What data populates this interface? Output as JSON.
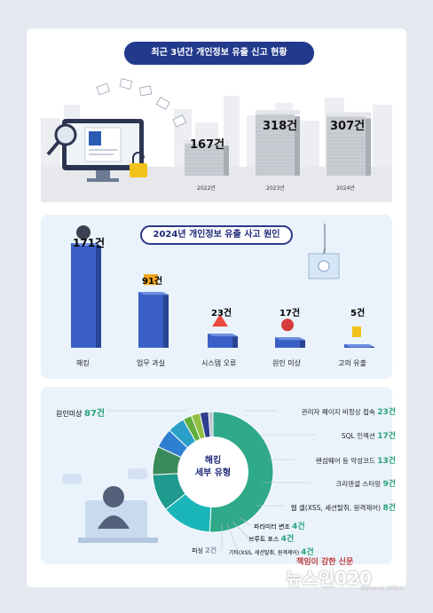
{
  "chart_data": [
    {
      "type": "bar",
      "title": "최근 3년간 개인정보 유출 신고 현황",
      "categories": [
        "2022년",
        "2023년",
        "2024년"
      ],
      "values": [
        167,
        318,
        307
      ],
      "value_labels": [
        "167건",
        "318건",
        "307건"
      ]
    },
    {
      "type": "bar",
      "title": "2024년 개인정보 유출 사고 원인",
      "categories": [
        "해킹",
        "업무 과실",
        "시스템 오류",
        "원인 미상",
        "고의 유출"
      ],
      "values": [
        171,
        91,
        23,
        17,
        5
      ],
      "value_labels": [
        "171건",
        "91건",
        "23건",
        "17건",
        "5건"
      ],
      "bar_colors": [
        "#3a5fc6",
        "#3a5fc6",
        "#3a5fc6",
        "#3a5fc6",
        "#3a5fc6"
      ]
    },
    {
      "type": "pie",
      "title": "해킹 세부 유형",
      "labels": [
        "원인미상",
        "관리자 페이지 비정상 접속",
        "SQL 인젝션",
        "랜섬웨어 등 악성코드",
        "크리덴셜 스터핑",
        "웹 셸(XSS, 세션탈취, 원격제어)",
        "파라미터 변조",
        "브루트 포스",
        "기타(XSS, 세션탈취, 원격제어)",
        "피싱"
      ],
      "values": [
        87,
        23,
        17,
        13,
        9,
        8,
        4,
        4,
        4,
        2
      ],
      "value_labels": [
        "87건",
        "23건",
        "17건",
        "13건",
        "9건",
        "8건",
        "4건",
        "4건",
        "4건",
        "2건"
      ],
      "colors": [
        "#2fa98a",
        "#1ab5b8",
        "#1f9a8e",
        "#3b8a5a",
        "#2f7fd0",
        "#2aa0c9",
        "#5fae3e",
        "#8fbf45",
        "#2c3f8f",
        "#b9c2d0"
      ]
    }
  ],
  "texts": {
    "watermark_line1": "책임이 강한 신문",
    "watermark_brand": "뉴스인020",
    "watermark_sub": "Online to Offline",
    "center_label_1": "해킹",
    "center_label_2": "세부 유형"
  }
}
